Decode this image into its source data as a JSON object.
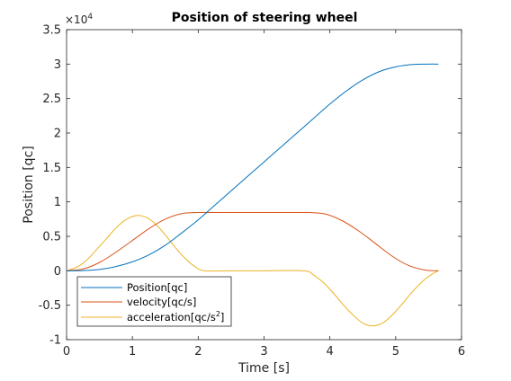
{
  "chart_data": {
    "type": "line",
    "title": "Position of steering wheel",
    "xlabel": "Time [s]",
    "ylabel": "Position [qc]",
    "xlim": [
      0,
      6
    ],
    "ylim": [
      -1,
      3.5
    ],
    "y_exponent": "×10",
    "y_exponent_power": "4",
    "grid": false,
    "legend_position": "bottom-left",
    "x_ticks": [
      "0",
      "1",
      "2",
      "3",
      "4",
      "5",
      "6"
    ],
    "y_ticks": [
      "-1",
      "-0.5",
      "0",
      "0.5",
      "1",
      "1.5",
      "2",
      "2.5",
      "3",
      "3.5"
    ],
    "series": [
      {
        "name": "Position[qc]",
        "color": "#0072BD",
        "x": [
          0.0,
          0.25,
          0.5,
          0.75,
          1.0,
          1.25,
          1.5,
          1.75,
          2.0,
          2.25,
          2.5,
          2.75,
          3.0,
          3.25,
          3.5,
          3.75,
          4.0,
          4.25,
          4.5,
          4.75,
          5.0,
          5.25,
          5.5,
          5.65
        ],
        "y": [
          0.0,
          0.002,
          0.019,
          0.061,
          0.13,
          0.23,
          0.37,
          0.55,
          0.74,
          0.95,
          1.16,
          1.37,
          1.58,
          1.79,
          2.0,
          2.21,
          2.42,
          2.61,
          2.77,
          2.89,
          2.96,
          2.995,
          3.0,
          3.0
        ]
      },
      {
        "name": "velocity[qc/s]",
        "color": "#D95319",
        "x": [
          0.0,
          0.25,
          0.5,
          0.75,
          1.0,
          1.25,
          1.5,
          1.75,
          2.0,
          2.25,
          2.5,
          3.0,
          3.5,
          3.7,
          3.95,
          4.2,
          4.45,
          4.7,
          4.95,
          5.2,
          5.45,
          5.65
        ],
        "y": [
          0.0,
          0.025,
          0.12,
          0.27,
          0.44,
          0.61,
          0.75,
          0.83,
          0.845,
          0.845,
          0.845,
          0.845,
          0.845,
          0.845,
          0.82,
          0.72,
          0.57,
          0.39,
          0.21,
          0.075,
          0.01,
          0.0
        ]
      },
      {
        "name": "acceleration[qc/s²]",
        "color": "#EDB120",
        "x": [
          0.0,
          0.15,
          0.3,
          0.45,
          0.6,
          0.75,
          0.9,
          1.05,
          1.2,
          1.35,
          1.5,
          1.65,
          1.8,
          1.95,
          2.1,
          2.5,
          3.0,
          3.6,
          3.75,
          3.9,
          4.05,
          4.2,
          4.35,
          4.5,
          4.65,
          4.8,
          4.95,
          5.1,
          5.25,
          5.4,
          5.55,
          5.65
        ],
        "y": [
          0.0,
          0.05,
          0.15,
          0.3,
          0.46,
          0.62,
          0.74,
          0.8,
          0.78,
          0.68,
          0.52,
          0.34,
          0.18,
          0.06,
          0.0,
          0.0,
          0.0,
          0.0,
          -0.06,
          -0.17,
          -0.32,
          -0.49,
          -0.64,
          -0.76,
          -0.8,
          -0.76,
          -0.64,
          -0.48,
          -0.31,
          -0.16,
          -0.05,
          0.0
        ]
      }
    ]
  },
  "legend": {
    "position_label": "Position[qc]",
    "velocity_label": "velocity[qc/s]",
    "acceleration_label_base": "acceleration[qc/s",
    "acceleration_label_sup": "2",
    "acceleration_label_end": "]"
  }
}
